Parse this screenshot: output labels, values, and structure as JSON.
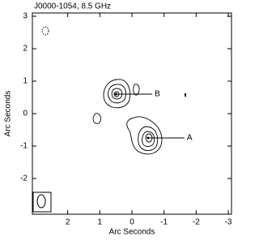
{
  "chart_data": {
    "type": "contour",
    "title": "J0000-1054, 8.5 GHz",
    "x_label": "Arc Seconds",
    "y_label": "Arc Seconds",
    "xlim": [
      3.1,
      -3.1
    ],
    "ylim": [
      -3.1,
      3.1
    ],
    "xticks": [
      2,
      1,
      0,
      -1,
      -2,
      -3
    ],
    "yticks": [
      -2,
      -1,
      0,
      1,
      2,
      3
    ],
    "grid": false,
    "color": "#000000",
    "sources": [
      {
        "label": "A",
        "x": -0.5,
        "y": -0.75
      },
      {
        "label": "B",
        "x": 0.5,
        "y": 0.6
      }
    ]
  }
}
